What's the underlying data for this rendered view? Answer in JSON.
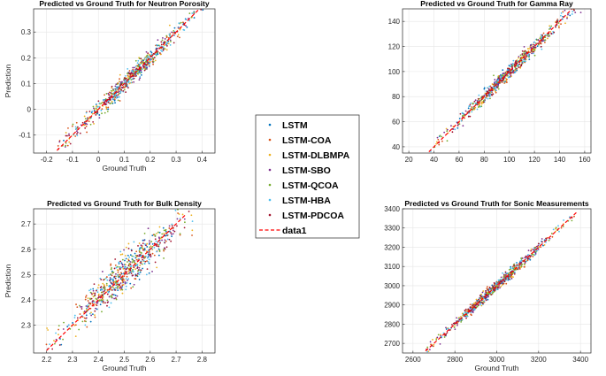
{
  "chart_data": [
    {
      "type": "scatter",
      "title": "Predicted vs Ground Truth for Neutron Porosity",
      "xlabel": "Ground Truth",
      "ylabel": "Prediction",
      "xlim": [
        -0.25,
        0.45
      ],
      "ylim": [
        -0.17,
        0.39
      ],
      "xticks": [
        -0.2,
        -0.1,
        0,
        0.1,
        0.2,
        0.3,
        0.4
      ],
      "yticks": [
        -0.1,
        0,
        0.1,
        0.2,
        0.3
      ],
      "xtick_labels": [
        "-0.2",
        "-0.1",
        "0",
        "0.1",
        "0.2",
        "0.3",
        "0.4"
      ],
      "ytick_labels": [
        "-0.1",
        "0",
        "0.1",
        "0.2",
        "0.3"
      ],
      "data_range": [
        -0.16,
        0.39
      ],
      "spread": 0.012,
      "center": 0.12,
      "grid": true
    },
    {
      "type": "scatter",
      "title": "Predicted vs Ground Truth for Gamma Ray",
      "xlabel": "",
      "ylabel": "",
      "xlim": [
        15,
        165
      ],
      "ylim": [
        35,
        150
      ],
      "xticks": [
        20,
        40,
        60,
        80,
        100,
        120,
        140,
        160
      ],
      "yticks": [
        40,
        60,
        80,
        100,
        120,
        140
      ],
      "xtick_labels": [
        "20",
        "40",
        "60",
        "80",
        "100",
        "120",
        "140",
        "160"
      ],
      "ytick_labels": [
        "40",
        "60",
        "80",
        "100",
        "120",
        "140"
      ],
      "data_range": [
        36,
        155
      ],
      "spread": 2.0,
      "center": 100,
      "grid": true
    },
    {
      "type": "scatter",
      "title": "Predicted vs Ground Truth for Bulk Density",
      "xlabel": "Ground Truth",
      "ylabel": "Prediction",
      "xlim": [
        2.15,
        2.85
      ],
      "ylim": [
        2.19,
        2.76
      ],
      "xticks": [
        2.2,
        2.3,
        2.4,
        2.5,
        2.6,
        2.7,
        2.8
      ],
      "yticks": [
        2.3,
        2.4,
        2.5,
        2.6,
        2.7
      ],
      "xtick_labels": [
        "2.2",
        "2.3",
        "2.4",
        "2.5",
        "2.6",
        "2.7",
        "2.8"
      ],
      "ytick_labels": [
        "2.3",
        "2.4",
        "2.5",
        "2.6",
        "2.7"
      ],
      "data_range": [
        2.2,
        2.74
      ],
      "spread": 0.025,
      "center": 2.5,
      "grid": true
    },
    {
      "type": "scatter",
      "title": "Predicted vs Ground Truth for Sonic Measurements",
      "xlabel": "Ground Truth",
      "ylabel": "",
      "xlim": [
        2550,
        3450
      ],
      "ylim": [
        2650,
        3400
      ],
      "xticks": [
        2600,
        2800,
        3000,
        3200,
        3400
      ],
      "yticks": [
        2700,
        2800,
        2900,
        3000,
        3100,
        3200,
        3300,
        3400
      ],
      "xtick_labels": [
        "2600",
        "2800",
        "3000",
        "3200",
        "3400"
      ],
      "ytick_labels": [
        "2700",
        "2800",
        "2900",
        "3000",
        "3100",
        "3200",
        "3300",
        "3400"
      ],
      "data_range": [
        2660,
        3380
      ],
      "spread": 9,
      "center": 2990,
      "grid": true
    }
  ],
  "legend": {
    "entries": [
      {
        "label": "LSTM",
        "color": "#0072BD",
        "kind": "marker"
      },
      {
        "label": "LSTM-COA",
        "color": "#D95319",
        "kind": "marker"
      },
      {
        "label": "LSTM-DLBMPA",
        "color": "#EDB120",
        "kind": "marker"
      },
      {
        "label": "LSTM-SBO",
        "color": "#7E2F8E",
        "kind": "marker"
      },
      {
        "label": "LSTM-QCOA",
        "color": "#77AC30",
        "kind": "marker"
      },
      {
        "label": "LSTM-HBA",
        "color": "#4DBEEE",
        "kind": "marker"
      },
      {
        "label": "LSTM-PDCOA",
        "color": "#A2142F",
        "kind": "marker"
      },
      {
        "label": "data1",
        "color": "#FF0000",
        "kind": "dashed-line"
      }
    ]
  },
  "colors": {
    "grid": "#e6e6e6",
    "axis": "#262626",
    "fit_line": "#FF0000"
  }
}
